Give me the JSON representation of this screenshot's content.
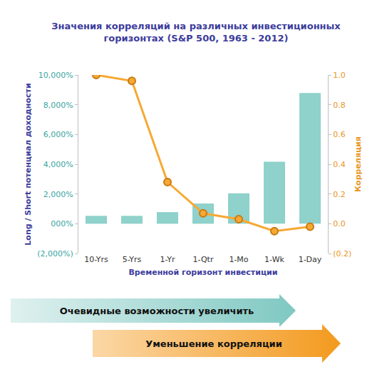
{
  "chart_data": {
    "type": "bar",
    "title": "Значения корреляций на различных инвестиционных\nгоризонтах (S&P 500, 1963 - 2012)",
    "x_label": "Временной горизонт инвестиции",
    "y_label": "Long / Short потенциал доходности",
    "y2_label": "Корреляция",
    "categories": [
      "10-Yrs",
      "5-Yrs",
      "1-Yr",
      "1-Qtr",
      "1-Mo",
      "1-Wk",
      "1-Day"
    ],
    "series": [
      {
        "name": "Long / Short потенциал доходности",
        "type": "bar",
        "color": "#8fd1cb",
        "values": [
          530,
          530,
          780,
          1360,
          2040,
          4170,
          8790
        ]
      },
      {
        "name": "Корреляция",
        "type": "line",
        "axis": "y2",
        "color": "#f7a833",
        "marker": "circle",
        "values": [
          1.0,
          0.96,
          0.28,
          0.07,
          0.03,
          -0.05,
          -0.02
        ]
      }
    ],
    "ylim": [
      -2000,
      10000
    ],
    "yticks": [
      {
        "value": -2000,
        "label": "(2,000%)"
      },
      {
        "value": 0,
        "label": "000%"
      },
      {
        "value": 2000,
        "label": "2,000%"
      },
      {
        "value": 4000,
        "label": "4,000%"
      },
      {
        "value": 6000,
        "label": "6,000%"
      },
      {
        "value": 8000,
        "label": "8,000%"
      },
      {
        "value": 10000,
        "label": "10,000%"
      }
    ],
    "y2lim": [
      -0.2,
      1.0
    ],
    "y2ticks": [
      {
        "value": -0.2,
        "label": "(0.2)"
      },
      {
        "value": 0,
        "label": "0.0"
      },
      0.2,
      0.4,
      0.6,
      0.8,
      {
        "value": 1.0,
        "label": "1.0"
      }
    ],
    "grid": false,
    "annotations": [
      "Очевидные возможности увеличить",
      "Уменьшение корреляции"
    ]
  }
}
